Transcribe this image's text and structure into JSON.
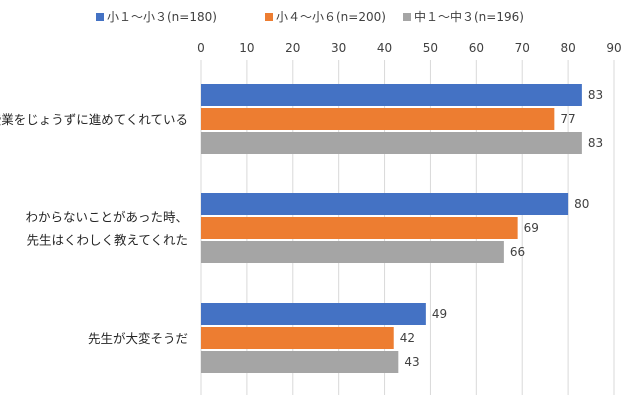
{
  "chart_data": {
    "type": "bar",
    "orientation": "horizontal",
    "title": "",
    "xlabel": "",
    "ylabel": "",
    "xlim": [
      0,
      90
    ],
    "x_ticks": [
      0,
      10,
      20,
      30,
      40,
      50,
      60,
      70,
      80,
      90
    ],
    "grid": true,
    "axis_position": "top",
    "legend_position": "top",
    "categories": [
      [
        "授業をじょうずに進めてくれている"
      ],
      [
        "わからないことがあった時、",
        "先生はくわしく教えてくれた"
      ],
      [
        "先生が大変そうだ"
      ]
    ],
    "series": [
      {
        "name": "小１～小３(n=180)",
        "color": "#4472C4",
        "values": [
          83,
          80,
          49
        ]
      },
      {
        "name": "小４～小６(n=200)",
        "color": "#ED7D31",
        "values": [
          77,
          69,
          42
        ]
      },
      {
        "name": "中１～中３(n=196)",
        "color": "#A5A5A5",
        "values": [
          83,
          66,
          43
        ]
      }
    ]
  }
}
